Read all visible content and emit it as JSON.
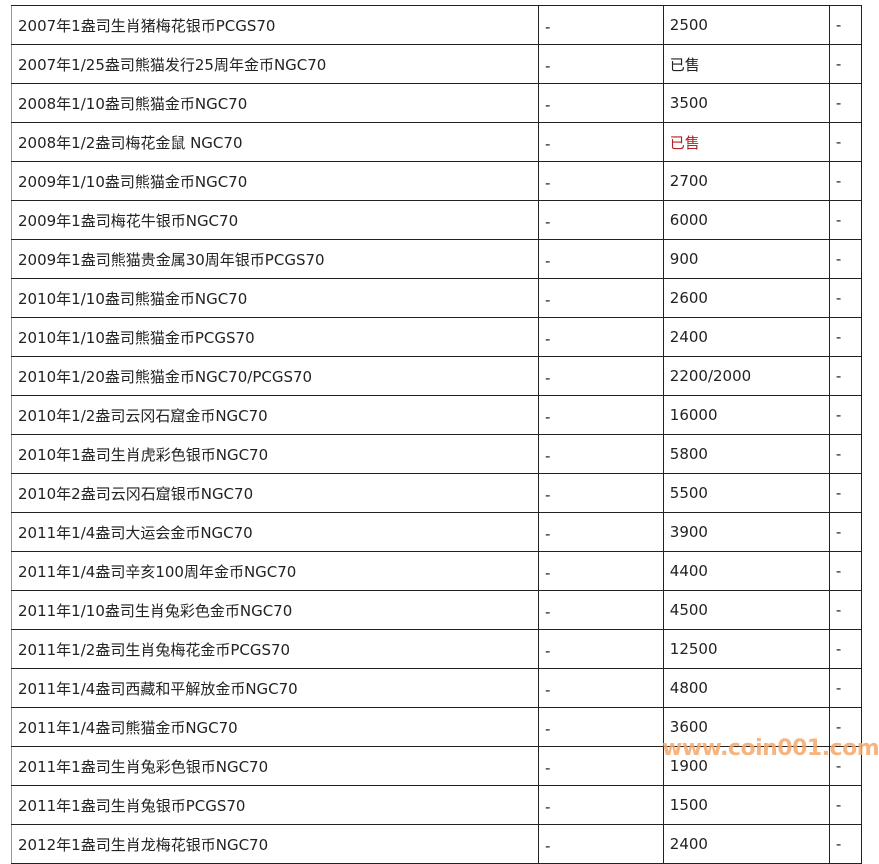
{
  "rows": [
    {
      "name": "2007年1盎司生肖猪梅花银币PCGS70",
      "col2": "-",
      "price": "2500",
      "col4": "-"
    },
    {
      "name": "2007年1/25盎司熊猫发行25周年金币NGC70",
      "col2": "-",
      "price": "已售",
      "col4": "-"
    },
    {
      "name": "2008年1/10盎司熊猫金币NGC70",
      "col2": "-",
      "price": "3500",
      "col4": "-"
    },
    {
      "name": "2008年1/2盎司梅花金鼠 NGC70",
      "col2": "-",
      "price": "已售",
      "col4": "-",
      "price_color": "#b22222"
    },
    {
      "name": "2009年1/10盎司熊猫金币NGC70",
      "col2": "-",
      "price": "2700",
      "col4": "-"
    },
    {
      "name": "2009年1盎司梅花牛银币NGC70",
      "col2": "-",
      "price": "6000",
      "col4": "-"
    },
    {
      "name": "2009年1盎司熊猫贵金属30周年银币PCGS70",
      "col2": "-",
      "price": "900",
      "col4": "-"
    },
    {
      "name": "2010年1/10盎司熊猫金币NGC70",
      "col2": "-",
      "price": "2600",
      "col4": "-"
    },
    {
      "name": "2010年1/10盎司熊猫金币PCGS70",
      "col2": "-",
      "price": "2400",
      "col4": "-"
    },
    {
      "name": "2010年1/20盎司熊猫金币NGC70/PCGS70",
      "col2": "-",
      "price": "2200/2000",
      "col4": "-"
    },
    {
      "name": "2010年1/2盎司云冈石窟金币NGC70",
      "col2": "-",
      "price": "16000",
      "col4": "-"
    },
    {
      "name": "2010年1盎司生肖虎彩色银币NGC70",
      "col2": "-",
      "price": "5800",
      "col4": "-"
    },
    {
      "name": "2010年2盎司云冈石窟银币NGC70",
      "col2": "-",
      "price": "5500",
      "col4": "-"
    },
    {
      "name": "2011年1/4盎司大运会金币NGC70",
      "col2": "-",
      "price": "3900",
      "col4": "-"
    },
    {
      "name": "2011年1/4盎司辛亥100周年金币NGC70",
      "col2": "-",
      "price": "4400",
      "col4": "-"
    },
    {
      "name": "2011年1/10盎司生肖兔彩色金币NGC70",
      "col2": "-",
      "price": "4500",
      "col4": "-"
    },
    {
      "name": "2011年1/2盎司生肖兔梅花金币PCGS70",
      "col2": "-",
      "price": "12500",
      "col4": "-"
    },
    {
      "name": "2011年1/4盎司西藏和平解放金币NGC70",
      "col2": "-",
      "price": "4800",
      "col4": "-"
    },
    {
      "name": "2011年1/4盎司熊猫金币NGC70",
      "col2": "-",
      "price": "3600",
      "col4": "-"
    },
    {
      "name": "2011年1盎司生肖兔彩色银币NGC70",
      "col2": "-",
      "price": "1900",
      "col4": "-"
    },
    {
      "name": "2011年1盎司生肖兔银币PCGS70",
      "col2": "-",
      "price": "1500",
      "col4": "-"
    },
    {
      "name": "2012年1盎司生肖龙梅花银币NGC70",
      "col2": "-",
      "price": "2400",
      "col4": "-"
    }
  ],
  "watermark": "www.coin001.com"
}
